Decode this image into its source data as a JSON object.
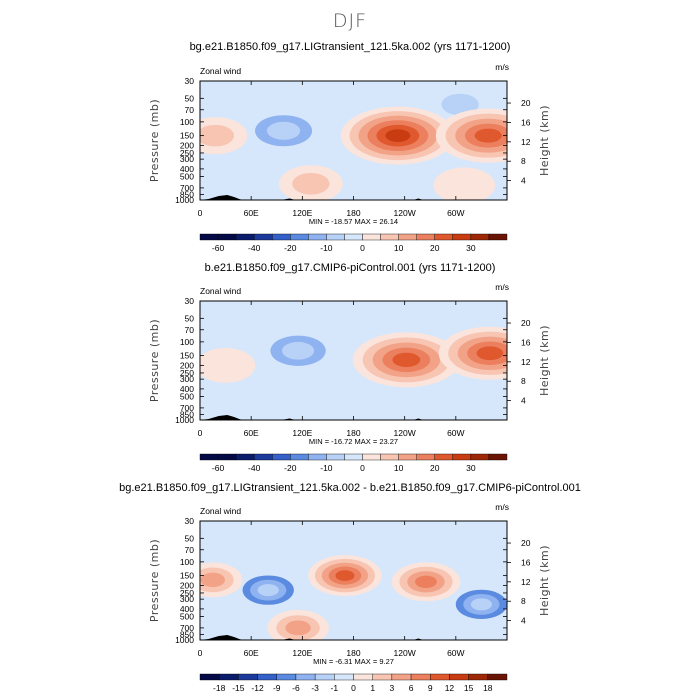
{
  "title": "DJF",
  "colors": {
    "positive": [
      "#fbe4dc",
      "#f7c5b2",
      "#f2a387",
      "#eb7f5e",
      "#e0592e",
      "#c93c12",
      "#9e2806",
      "#6b1304"
    ],
    "negative": [
      "#d6e7fb",
      "#b7d1f7",
      "#8fb3f0",
      "#5b8be0",
      "#3460c9",
      "#1b3a9c",
      "#0a1b6b",
      "#030a45"
    ],
    "topography": "#000000"
  },
  "panels": [
    {
      "title": "bg.e21.B1850.f09_g17.LIGtransient_121.5ka.002 (yrs 1171-1200)",
      "left_string": "Zonal wind",
      "right_string": "m/s",
      "minmax": "MIN = -18.57   MAX =  26.14",
      "colorbar_labels": [
        "-60",
        "-40",
        "-20",
        "-10",
        "0",
        "10",
        "20",
        "30"
      ]
    },
    {
      "title": "b.e21.B1850.f09_g17.CMIP6-piControl.001 (yrs 1171-1200)",
      "left_string": "Zonal wind",
      "right_string": "m/s",
      "minmax": "MIN = -16.72   MAX =  23.27",
      "colorbar_labels": [
        "-60",
        "-40",
        "-20",
        "-10",
        "0",
        "10",
        "20",
        "30"
      ]
    },
    {
      "title": "bg.e21.B1850.f09_g17.LIGtransient_121.5ka.002 - b.e21.B1850.f09_g17.CMIP6-piControl.001",
      "left_string": "Zonal wind",
      "right_string": "m/s",
      "minmax": "MIN = -6.31   MAX =  9.27",
      "colorbar_labels": [
        "-18",
        "-15",
        "-12",
        "-9",
        "-6",
        "-3",
        "-1",
        "0",
        "1",
        "3",
        "6",
        "9",
        "12",
        "15",
        "18"
      ]
    }
  ],
  "chart_data": [
    {
      "type": "heatmap",
      "title": "bg.e21.B1850.f09_g17.LIGtransient_121.5ka.002 (yrs 1171-1200)",
      "variable": "Zonal wind",
      "units": "m/s",
      "xlabel": "",
      "ylabel": "Pressure (mb)",
      "ylabel_right": "Height (km)",
      "x_ticks": [
        "0",
        "60E",
        "120E",
        "180",
        "120W",
        "60W"
      ],
      "x_tick_values": [
        0,
        60,
        120,
        180,
        240,
        300
      ],
      "xlim": [
        0,
        360
      ],
      "y_ticks": [
        "30",
        "50",
        "70",
        "100",
        "150",
        "200",
        "250",
        "300",
        "400",
        "500",
        "700",
        "850",
        "1000"
      ],
      "y_tick_values": [
        30,
        50,
        70,
        100,
        150,
        200,
        250,
        300,
        400,
        500,
        700,
        850,
        1000
      ],
      "ylim": [
        1000,
        30
      ],
      "y_scale": "log",
      "right_ticks": [
        "4",
        "8",
        "12",
        "16",
        "20"
      ],
      "min": -18.57,
      "max": 26.14,
      "contour_levels": [
        -60,
        -50,
        -40,
        -30,
        -20,
        -15,
        -10,
        -5,
        0,
        5,
        10,
        15,
        20,
        25,
        30,
        35
      ],
      "features": [
        {
          "lon": 98,
          "p": 130,
          "value": -12
        },
        {
          "lon": 305,
          "p": 60,
          "value": -5
        },
        {
          "lon": 232,
          "p": 150,
          "value": 26
        },
        {
          "lon": 338,
          "p": 150,
          "value": 22
        },
        {
          "lon": 18,
          "p": 150,
          "value": 5
        },
        {
          "lon": 130,
          "p": 620,
          "value": 5
        },
        {
          "lon": 310,
          "p": 650,
          "value": 4
        }
      ]
    },
    {
      "type": "heatmap",
      "title": "b.e21.B1850.f09_g17.CMIP6-piControl.001 (yrs 1171-1200)",
      "variable": "Zonal wind",
      "units": "m/s",
      "xlabel": "",
      "ylabel": "Pressure (mb)",
      "ylabel_right": "Height (km)",
      "x_ticks": [
        "0",
        "60E",
        "120E",
        "180",
        "120W",
        "60W"
      ],
      "x_tick_values": [
        0,
        60,
        120,
        180,
        240,
        300
      ],
      "xlim": [
        0,
        360
      ],
      "y_ticks": [
        "30",
        "50",
        "70",
        "100",
        "150",
        "200",
        "250",
        "300",
        "400",
        "500",
        "700",
        "850",
        "1000"
      ],
      "y_tick_values": [
        30,
        50,
        70,
        100,
        150,
        200,
        250,
        300,
        400,
        500,
        700,
        850,
        1000
      ],
      "ylim": [
        1000,
        30
      ],
      "y_scale": "log",
      "right_ticks": [
        "4",
        "8",
        "12",
        "16",
        "20"
      ],
      "min": -16.72,
      "max": 23.27,
      "contour_levels": [
        -60,
        -50,
        -40,
        -30,
        -20,
        -15,
        -10,
        -5,
        0,
        5,
        10,
        15,
        20,
        25,
        30,
        35
      ],
      "features": [
        {
          "lon": 115,
          "p": 130,
          "value": -11
        },
        {
          "lon": 242,
          "p": 170,
          "value": 23
        },
        {
          "lon": 340,
          "p": 140,
          "value": 21
        },
        {
          "lon": 30,
          "p": 200,
          "value": 3
        }
      ]
    },
    {
      "type": "heatmap",
      "title": "bg.e21.B1850.f09_g17.LIGtransient_121.5ka.002 - b.e21.B1850.f09_g17.CMIP6-piControl.001",
      "variable": "Zonal wind",
      "units": "m/s",
      "xlabel": "",
      "ylabel": "Pressure (mb)",
      "ylabel_right": "Height (km)",
      "x_ticks": [
        "0",
        "60E",
        "120E",
        "180",
        "120W",
        "60W"
      ],
      "x_tick_values": [
        0,
        60,
        120,
        180,
        240,
        300
      ],
      "xlim": [
        0,
        360
      ],
      "y_ticks": [
        "30",
        "50",
        "70",
        "100",
        "150",
        "200",
        "250",
        "300",
        "400",
        "500",
        "700",
        "850",
        "1000"
      ],
      "y_tick_values": [
        30,
        50,
        70,
        100,
        150,
        200,
        250,
        300,
        400,
        500,
        700,
        850,
        1000
      ],
      "ylim": [
        1000,
        30
      ],
      "y_scale": "log",
      "right_ticks": [
        "4",
        "8",
        "12",
        "16",
        "20"
      ],
      "min": -6.31,
      "max": 9.27,
      "contour_levels": [
        -18,
        -15,
        -12,
        -9,
        -6,
        -3,
        -1,
        0,
        1,
        3,
        6,
        9,
        12,
        15,
        18
      ],
      "features": [
        {
          "lon": 80,
          "p": 230,
          "value": -6
        },
        {
          "lon": 330,
          "p": 350,
          "value": -6
        },
        {
          "lon": 170,
          "p": 150,
          "value": 9
        },
        {
          "lon": 265,
          "p": 180,
          "value": 7
        },
        {
          "lon": 115,
          "p": 700,
          "value": 4
        },
        {
          "lon": 15,
          "p": 170,
          "value": 3
        }
      ]
    }
  ]
}
